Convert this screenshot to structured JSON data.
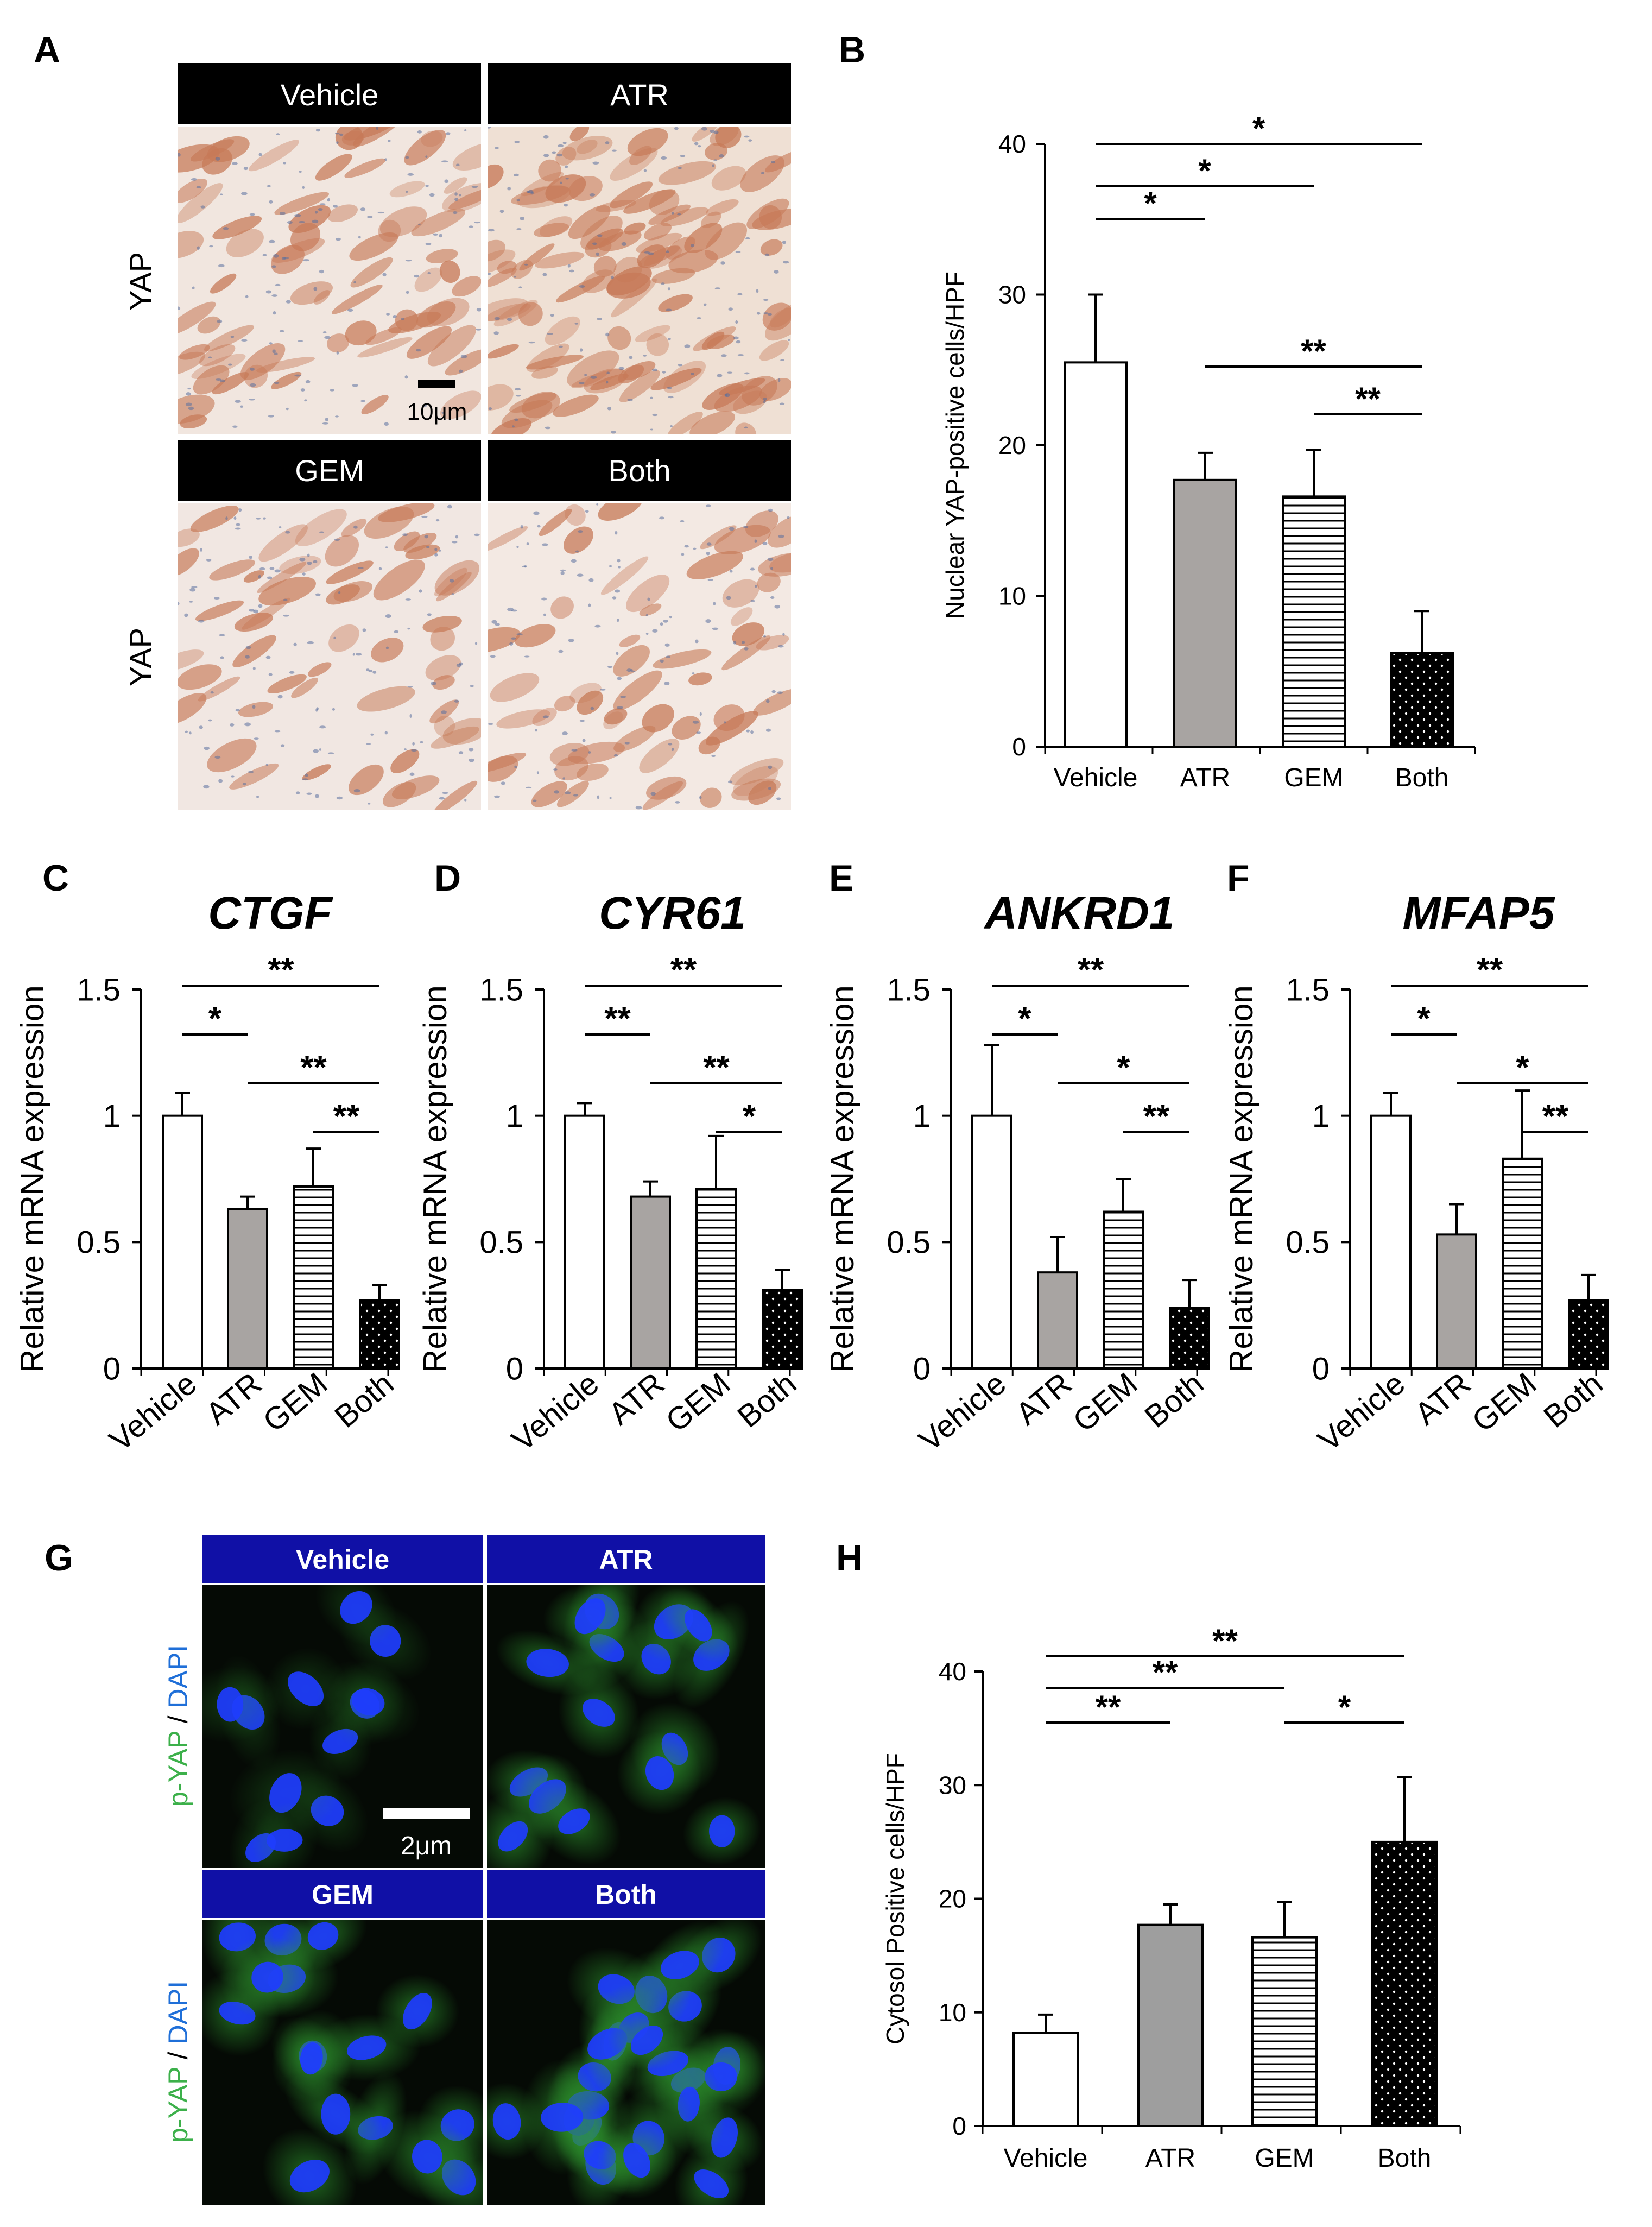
{
  "panel_labels": {
    "A": "A",
    "B": "B",
    "C": "C",
    "D": "D",
    "E": "E",
    "F": "F",
    "G": "G",
    "H": "H"
  },
  "ihc_panel": {
    "headers": [
      "Vehicle",
      "ATR",
      "GEM",
      "Both"
    ],
    "row_label": "YAP",
    "scale_bar": "10μm",
    "stain_colors": {
      "background": "#f1e6df",
      "cell": "#c77a58",
      "nucleus": "#5a6f9e"
    }
  },
  "if_panel": {
    "headers": [
      "Vehicle",
      "ATR",
      "GEM",
      "Both"
    ],
    "row_label_parts": [
      "p-YAP",
      " / ",
      "DAPI"
    ],
    "scale_bar": "2μm",
    "colors": {
      "header": "#1010a6",
      "pyap": "#3cb04a",
      "dapi": "#1f6fd8",
      "nucleus": "#1e3cff",
      "cytoplasm": "#1a6a1a",
      "background": "#050a05"
    }
  },
  "chart_data": [
    {
      "id": "B",
      "type": "bar",
      "categories": [
        "Vehicle",
        "ATR",
        "GEM",
        "Both"
      ],
      "values": [
        25.5,
        17.7,
        16.6,
        6.2
      ],
      "errors": [
        4.5,
        1.8,
        3.1,
        2.8
      ],
      "ylabel": "Nuclear YAP-positive cells/HPF",
      "ylim": [
        0,
        40
      ],
      "yticks": [
        "0",
        "10",
        "20",
        "30",
        "40"
      ],
      "fills": [
        "white",
        "gray",
        "hlines",
        "dots"
      ],
      "significance": [
        {
          "from": 0,
          "to": 3,
          "label": "*"
        },
        {
          "from": 0,
          "to": 2,
          "label": "*"
        },
        {
          "from": 0,
          "to": 1,
          "label": "*"
        },
        {
          "from": 1,
          "to": 3,
          "label": "**"
        },
        {
          "from": 2,
          "to": 3,
          "label": "**"
        }
      ]
    },
    {
      "id": "C",
      "type": "bar",
      "title": "CTGF",
      "categories": [
        "Vehicle",
        "ATR",
        "GEM",
        "Both"
      ],
      "values": [
        1.0,
        0.63,
        0.72,
        0.27
      ],
      "errors": [
        0.09,
        0.05,
        0.15,
        0.06
      ],
      "ylabel": "Relative mRNA expression",
      "ylim": [
        0,
        1.5
      ],
      "yticks": [
        "0",
        "0.5",
        "1",
        "1.5"
      ],
      "fills": [
        "white",
        "gray",
        "hlines",
        "dots"
      ],
      "significance": [
        {
          "from": 0,
          "to": 3,
          "label": "**"
        },
        {
          "from": 0,
          "to": 1,
          "label": "*"
        },
        {
          "from": 1,
          "to": 3,
          "label": "**"
        },
        {
          "from": 2,
          "to": 3,
          "label": "**"
        }
      ]
    },
    {
      "id": "D",
      "type": "bar",
      "title": "CYR61",
      "categories": [
        "Vehicle",
        "ATR",
        "GEM",
        "Both"
      ],
      "values": [
        1.0,
        0.68,
        0.71,
        0.31
      ],
      "errors": [
        0.05,
        0.06,
        0.21,
        0.08
      ],
      "ylabel": "Relative mRNA expression",
      "ylim": [
        0,
        1.5
      ],
      "yticks": [
        "0",
        "0.5",
        "1",
        "1.5"
      ],
      "fills": [
        "white",
        "gray",
        "hlines",
        "dots"
      ],
      "significance": [
        {
          "from": 0,
          "to": 3,
          "label": "**"
        },
        {
          "from": 0,
          "to": 1,
          "label": "**"
        },
        {
          "from": 1,
          "to": 3,
          "label": "**"
        },
        {
          "from": 2,
          "to": 3,
          "label": "*"
        }
      ]
    },
    {
      "id": "E",
      "type": "bar",
      "title": "ANKRD1",
      "categories": [
        "Vehicle",
        "ATR",
        "GEM",
        "Both"
      ],
      "values": [
        1.0,
        0.38,
        0.62,
        0.24
      ],
      "errors": [
        0.28,
        0.14,
        0.13,
        0.11
      ],
      "ylabel": "Relative mRNA expression",
      "ylim": [
        0,
        1.5
      ],
      "yticks": [
        "0",
        "0.5",
        "1",
        "1.5"
      ],
      "fills": [
        "white",
        "gray",
        "hlines",
        "dots"
      ],
      "significance": [
        {
          "from": 0,
          "to": 3,
          "label": "**"
        },
        {
          "from": 0,
          "to": 1,
          "label": "*"
        },
        {
          "from": 1,
          "to": 3,
          "label": "*"
        },
        {
          "from": 2,
          "to": 3,
          "label": "**"
        }
      ]
    },
    {
      "id": "F",
      "type": "bar",
      "title": "MFAP5",
      "categories": [
        "Vehicle",
        "ATR",
        "GEM",
        "Both"
      ],
      "values": [
        1.0,
        0.53,
        0.83,
        0.27
      ],
      "errors": [
        0.09,
        0.12,
        0.27,
        0.1
      ],
      "ylabel": "Relative mRNA expression",
      "ylim": [
        0,
        1.5
      ],
      "yticks": [
        "0",
        "0.5",
        "1",
        "1.5"
      ],
      "fills": [
        "white",
        "gray",
        "hlines",
        "dots"
      ],
      "significance": [
        {
          "from": 0,
          "to": 3,
          "label": "**"
        },
        {
          "from": 0,
          "to": 1,
          "label": "*"
        },
        {
          "from": 1,
          "to": 3,
          "label": "*"
        },
        {
          "from": 2,
          "to": 3,
          "label": "**"
        }
      ]
    },
    {
      "id": "H",
      "type": "bar",
      "categories": [
        "Vehicle",
        "ATR",
        "GEM",
        "Both"
      ],
      "values": [
        8.2,
        17.7,
        16.6,
        25.0
      ],
      "errors": [
        1.6,
        1.8,
        3.1,
        5.7
      ],
      "ylabel": "Cytosol Positive cells/HPF",
      "ylim": [
        0,
        40
      ],
      "yticks": [
        "0",
        "10",
        "20",
        "30",
        "40"
      ],
      "fills": [
        "white",
        "gray2",
        "hlines",
        "dots"
      ],
      "significance": [
        {
          "from": 0,
          "to": 3,
          "label": "**"
        },
        {
          "from": 0,
          "to": 2,
          "label": "**"
        },
        {
          "from": 0,
          "to": 1,
          "label": "**"
        },
        {
          "from": 2,
          "to": 3,
          "label": "*"
        }
      ]
    }
  ]
}
